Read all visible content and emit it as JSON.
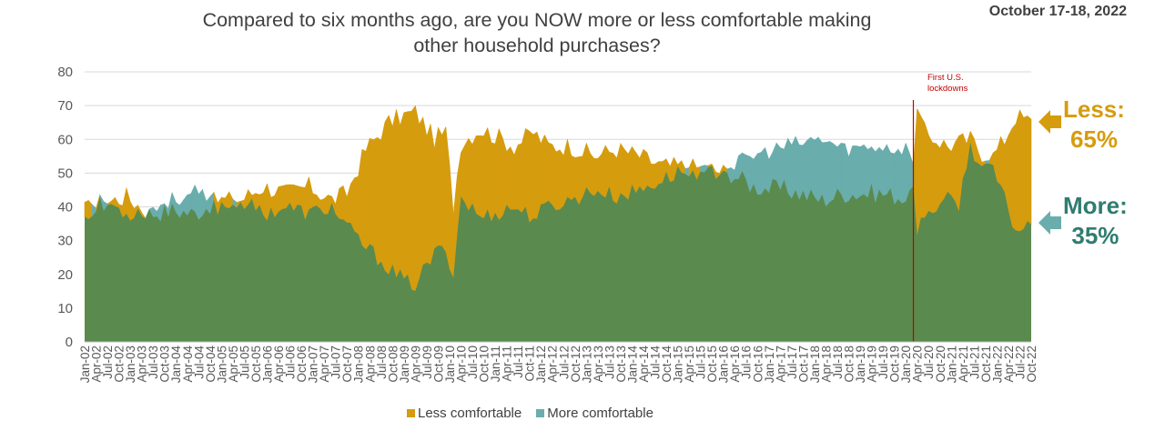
{
  "title": "Compared to six months ago, are you NOW more or less comfortable making\nother household purchases?",
  "date": "October 17-18, 2022",
  "callouts": {
    "less_label": "Less:",
    "less_value": "65%",
    "more_label": "More:",
    "more_value": "35%"
  },
  "annotation": "First U.S.\nlockdowns",
  "legend": {
    "less": "Less comfortable",
    "more": "More comfortable"
  },
  "colors": {
    "less": "#d59c0e",
    "more_band": "#6aadad",
    "more_area": "#5a8a4e",
    "grid": "#d9d9d9",
    "marker": "#c00000"
  },
  "chart_data": {
    "type": "area",
    "start_month": "2002-01",
    "end_month": "2022-10",
    "ylim": [
      0,
      80
    ],
    "yticks": [
      0,
      10,
      20,
      30,
      40,
      50,
      60,
      70,
      80
    ],
    "xticks": [
      "Jan-02",
      "Apr-02",
      "Jul-02",
      "Oct-02",
      "Jan-03",
      "Apr-03",
      "Jul-03",
      "Oct-03",
      "Jan-04",
      "Apr-04",
      "Jul-04",
      "Oct-04",
      "Jan-05",
      "Apr-05",
      "Jul-05",
      "Oct-05",
      "Jan-06",
      "Apr-06",
      "Jul-06",
      "Oct-06",
      "Jan-07",
      "Apr-07",
      "Jul-07",
      "Oct-07",
      "Jan-08",
      "Apr-08",
      "Jul-08",
      "Oct-08",
      "Jan-09",
      "Apr-09",
      "Jul-09",
      "Oct-09",
      "Jan-10",
      "Apr-10",
      "Jul-10",
      "Oct-10",
      "Jan-11",
      "Apr-11",
      "Jul-11",
      "Oct-11",
      "Jan-12",
      "Apr-12",
      "Jul-12",
      "Oct-12",
      "Jan-13",
      "Apr-13",
      "Jul-13",
      "Oct-13",
      "Jan-14",
      "Apr-14",
      "Jul-14",
      "Oct-14",
      "Jan-15",
      "Apr-15",
      "Jul-15",
      "Oct-15",
      "Jan-16",
      "Apr-16",
      "Jul-16",
      "Oct-16",
      "Jan-17",
      "Apr-17",
      "Jul-17",
      "Oct-17",
      "Jan-18",
      "Apr-18",
      "Jul-18",
      "Oct-18",
      "Jan-19",
      "Apr-19",
      "Jul-19",
      "Oct-19",
      "Jan-20",
      "Apr-20",
      "Jul-20",
      "Oct-20",
      "Jan-21",
      "Apr-21",
      "Jul-21",
      "Oct-21",
      "Jan-22",
      "Apr-22",
      "Jul-22",
      "Oct-22"
    ],
    "marker_month": "2020-03",
    "series": [
      {
        "name": "Less comfortable",
        "keypoints": [
          [
            "2002-01",
            39
          ],
          [
            "2002-06",
            41
          ],
          [
            "2002-12",
            43
          ],
          [
            "2003-06",
            38
          ],
          [
            "2003-12",
            39
          ],
          [
            "2004-06",
            38
          ],
          [
            "2004-12",
            42
          ],
          [
            "2005-06",
            42
          ],
          [
            "2005-12",
            46
          ],
          [
            "2006-06",
            44
          ],
          [
            "2006-12",
            46
          ],
          [
            "2007-06",
            42
          ],
          [
            "2007-10",
            44
          ],
          [
            "2008-03",
            57
          ],
          [
            "2008-09",
            65
          ],
          [
            "2009-01",
            67
          ],
          [
            "2009-04",
            68
          ],
          [
            "2009-09",
            60
          ],
          [
            "2009-12",
            62
          ],
          [
            "2010-02",
            40
          ],
          [
            "2010-04",
            59
          ],
          [
            "2010-09",
            63
          ],
          [
            "2011-01",
            61
          ],
          [
            "2011-06",
            58
          ],
          [
            "2011-11",
            62
          ],
          [
            "2012-03",
            58
          ],
          [
            "2012-09",
            58
          ],
          [
            "2013-03",
            55
          ],
          [
            "2013-09",
            57
          ],
          [
            "2014-03",
            55
          ],
          [
            "2014-09",
            52
          ],
          [
            "2015-03",
            52
          ],
          [
            "2015-09",
            51
          ],
          [
            "2016-03",
            50
          ],
          [
            "2016-09",
            46
          ],
          [
            "2017-06",
            45
          ],
          [
            "2018-03",
            42
          ],
          [
            "2018-09",
            44
          ],
          [
            "2019-06",
            44
          ],
          [
            "2019-12",
            43
          ],
          [
            "2020-02",
            42
          ],
          [
            "2020-04",
            68
          ],
          [
            "2020-06",
            62
          ],
          [
            "2020-12",
            58
          ],
          [
            "2021-03",
            59
          ],
          [
            "2021-06",
            60
          ],
          [
            "2021-09",
            56
          ],
          [
            "2021-12",
            55
          ],
          [
            "2022-03",
            60
          ],
          [
            "2022-06",
            67
          ],
          [
            "2022-10",
            65
          ]
        ]
      },
      {
        "name": "More comfortable",
        "keypoints": [
          [
            "2002-01",
            38
          ],
          [
            "2002-06",
            42
          ],
          [
            "2002-12",
            38
          ],
          [
            "2003-06",
            39
          ],
          [
            "2003-12",
            42
          ],
          [
            "2004-06",
            44
          ],
          [
            "2004-12",
            40
          ],
          [
            "2005-06",
            42
          ],
          [
            "2005-12",
            38
          ],
          [
            "2006-06",
            40
          ],
          [
            "2006-12",
            38
          ],
          [
            "2007-06",
            40
          ],
          [
            "2007-10",
            34
          ],
          [
            "2008-03",
            28
          ],
          [
            "2008-09",
            22
          ],
          [
            "2009-01",
            18
          ],
          [
            "2009-04",
            17
          ],
          [
            "2009-09",
            26
          ],
          [
            "2009-12",
            28
          ],
          [
            "2010-02",
            20
          ],
          [
            "2010-04",
            43
          ],
          [
            "2010-09",
            37
          ],
          [
            "2011-01",
            38
          ],
          [
            "2011-06",
            40
          ],
          [
            "2011-11",
            37
          ],
          [
            "2012-03",
            40
          ],
          [
            "2012-09",
            42
          ],
          [
            "2013-03",
            45
          ],
          [
            "2013-09",
            43
          ],
          [
            "2014-03",
            45
          ],
          [
            "2014-09",
            48
          ],
          [
            "2015-03",
            51
          ],
          [
            "2015-09",
            50
          ],
          [
            "2016-03",
            52
          ],
          [
            "2016-09",
            55
          ],
          [
            "2017-06",
            58
          ],
          [
            "2018-03",
            60
          ],
          [
            "2018-09",
            57
          ],
          [
            "2019-06",
            58
          ],
          [
            "2019-12",
            57
          ],
          [
            "2020-02",
            58
          ],
          [
            "2020-04",
            32
          ],
          [
            "2020-06",
            38
          ],
          [
            "2020-12",
            42
          ],
          [
            "2021-03",
            41
          ],
          [
            "2021-06",
            58
          ],
          [
            "2021-09",
            52
          ],
          [
            "2021-12",
            51
          ],
          [
            "2022-03",
            42
          ],
          [
            "2022-06",
            33
          ],
          [
            "2022-10",
            35
          ]
        ]
      }
    ],
    "annotations": [
      "First U.S. lockdowns"
    ],
    "grid": true,
    "legend_position": "bottom"
  }
}
